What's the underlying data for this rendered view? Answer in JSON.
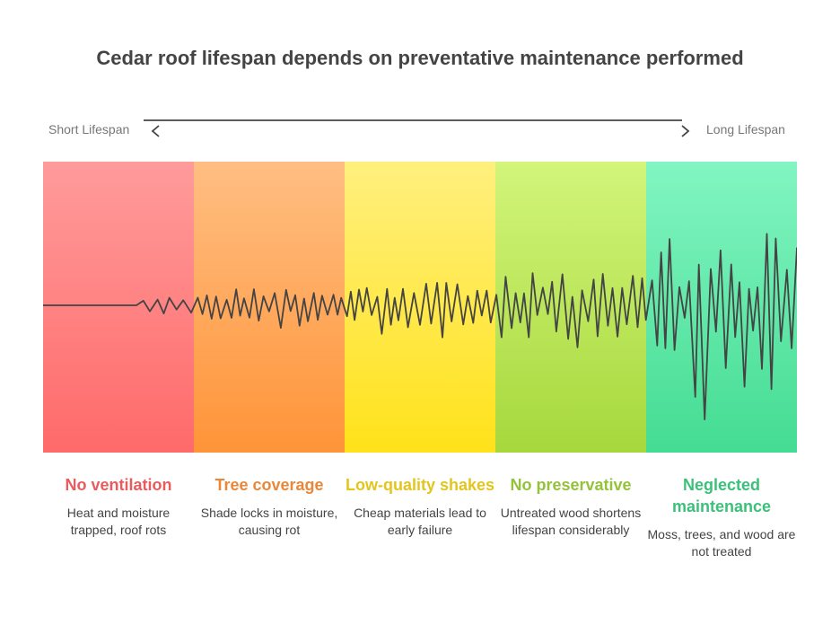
{
  "title": "Cedar roof lifespan depends on preventative maintenance performed",
  "scale": {
    "left_label": "Short Lifespan",
    "right_label": "Long Lifespan"
  },
  "stages": [
    {
      "heading": "No ventilation",
      "description": "Heat and moisture trapped, roof rots",
      "color": "#e85c5c",
      "band_top": "#ff9b9b",
      "band_bottom": "#ff6a6a"
    },
    {
      "heading": "Tree coverage",
      "description": "Shade locks in moisture, causing rot",
      "color": "#e8883a",
      "band_top": "#ffbe82",
      "band_bottom": "#ff9438"
    },
    {
      "heading": "Low-quality shakes",
      "description": "Cheap materials lead to early failure",
      "color": "#e3c51e",
      "band_top": "#fff07e",
      "band_bottom": "#ffe21a"
    },
    {
      "heading": "No preservative",
      "description": "Untreated wood shortens lifespan considerably",
      "color": "#94c23a",
      "band_top": "#d2f57a",
      "band_bottom": "#a6d83c"
    },
    {
      "heading": "Neglected maintenance",
      "description": "Moss, trees, and wood are not treated",
      "color": "#3cc07a",
      "band_top": "#82f5c2",
      "band_bottom": "#44dc92"
    }
  ]
}
